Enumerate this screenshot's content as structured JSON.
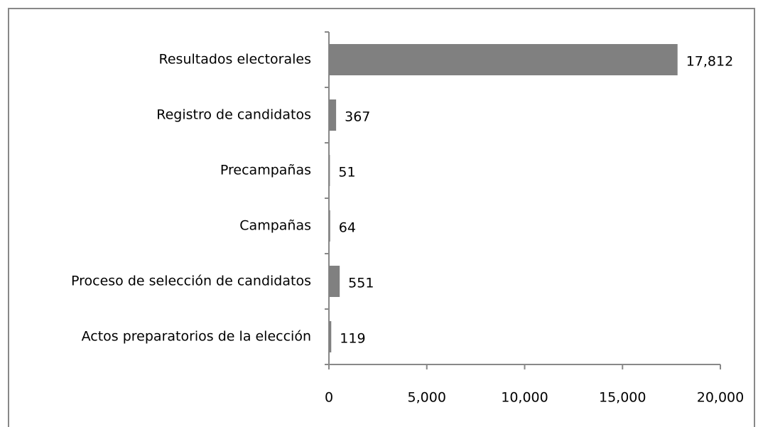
{
  "chart_data": {
    "type": "bar",
    "orientation": "horizontal",
    "categories": [
      "Resultados electorales",
      "Registro de candidatos",
      "Precampañas",
      "Campañas",
      "Proceso de selección de candidatos",
      "Actos preparatorios de la elección"
    ],
    "values": [
      17812,
      367,
      51,
      64,
      551,
      119
    ],
    "value_labels": [
      "17,812",
      "367",
      "51",
      "64",
      "551",
      "119"
    ],
    "color": "#808080",
    "xlim": [
      0,
      20000
    ],
    "xticks": [
      0,
      {
        "value": 5000,
        "label": "5,000"
      },
      {
        "value": 10000,
        "label": "10,000"
      },
      {
        "value": 15000,
        "label": "15,000"
      },
      {
        "value": 20000,
        "label": "20,000"
      }
    ],
    "grid": false
  }
}
